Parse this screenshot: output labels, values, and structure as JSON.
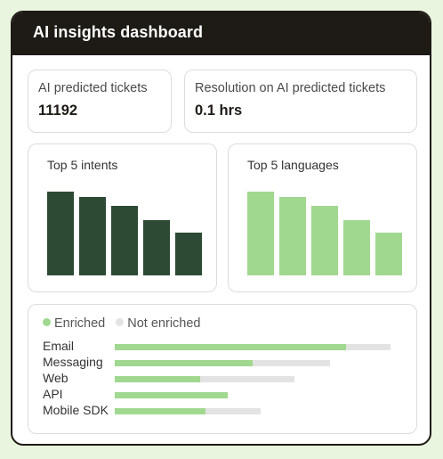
{
  "header": {
    "title": "AI insights dashboard"
  },
  "metrics": [
    {
      "label": "AI predicted tickets",
      "value": "11192"
    },
    {
      "label": "Resolution on AI predicted tickets",
      "value": "0.1 hrs"
    }
  ],
  "colors": {
    "dark_green": "#2d4a34",
    "light_green": "#a1d88f",
    "gray_track": "#e3e3e3",
    "header_bg": "#1e1a15"
  },
  "intents_chart": {
    "title": "Top 5 intents",
    "values": [
      97,
      91,
      80,
      64,
      49
    ]
  },
  "languages_chart": {
    "title": "Top 5 languages",
    "values": [
      97,
      91,
      80,
      64,
      49
    ]
  },
  "channels": {
    "legend": {
      "enriched": "Enriched",
      "not_enriched": "Not enriched"
    },
    "rows": [
      {
        "label": "Email",
        "enriched": 0.84,
        "total": 1.0
      },
      {
        "label": "Messaging",
        "enriched": 0.5,
        "total": 0.78
      },
      {
        "label": "Web",
        "enriched": 0.31,
        "total": 0.65
      },
      {
        "label": "API",
        "enriched": 0.41,
        "total": 0.41
      },
      {
        "label": "Mobile SDK",
        "enriched": 0.33,
        "total": 0.53
      }
    ]
  }
}
